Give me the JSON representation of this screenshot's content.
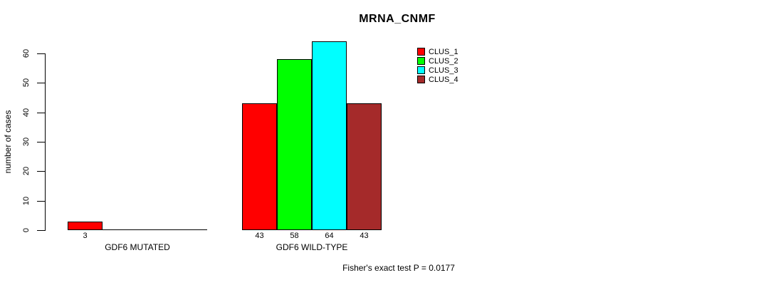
{
  "chart_data": {
    "type": "bar",
    "title": "MRNA_CNMF",
    "ylabel": "number of cases",
    "xlabel": "",
    "ylim": [
      0,
      60
    ],
    "yticks": [
      0,
      10,
      20,
      30,
      40,
      50,
      60
    ],
    "grid": false,
    "legend_position": "top-right",
    "categories": [
      "GDF6 MUTATED",
      "GDF6 WILD-TYPE"
    ],
    "series": [
      {
        "name": "CLUS_1",
        "color": "#FF0000",
        "values": [
          3,
          43
        ]
      },
      {
        "name": "CLUS_2",
        "color": "#00FF00",
        "values": [
          0,
          58
        ]
      },
      {
        "name": "CLUS_3",
        "color": "#00FFFF",
        "values": [
          0,
          64
        ]
      },
      {
        "name": "CLUS_4",
        "color": "#A52A2A",
        "values": [
          0,
          43
        ]
      }
    ],
    "bar_value_labels": [
      [
        3,
        null,
        null,
        null
      ],
      [
        43,
        58,
        64,
        43
      ]
    ],
    "annotation": "Fisher's exact test P = 0.0177"
  }
}
